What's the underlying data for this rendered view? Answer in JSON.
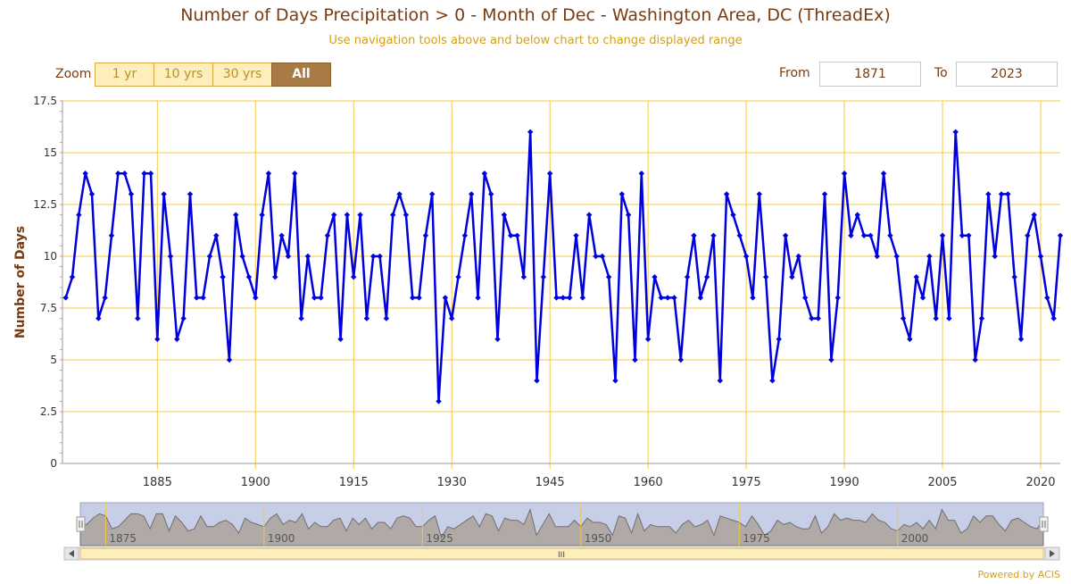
{
  "header": {
    "title": "Number of Days Precipitation > 0 - Month of Dec - Washington Area, DC (ThreadEx)",
    "subtitle": "Use navigation tools above and below chart to change displayed range"
  },
  "zoom": {
    "label": "Zoom",
    "buttons": [
      {
        "label": "1 yr",
        "active": false
      },
      {
        "label": "10 yrs",
        "active": false
      },
      {
        "label": "30 yrs",
        "active": false
      },
      {
        "label": "All",
        "active": true
      }
    ]
  },
  "range": {
    "from_label": "From",
    "from_value": "1871",
    "to_label": "To",
    "to_value": "2023"
  },
  "navigator": {
    "tick_labels": [
      "1875",
      "1900",
      "1925",
      "1950",
      "1975",
      "2000"
    ],
    "scrollbar_grip": "III"
  },
  "footer": {
    "credit": "Powered by ACIS"
  },
  "colors": {
    "line": "#0000dd",
    "grid": "#f5c842",
    "text": "#7a3b12",
    "accent": "#d4a017",
    "navigator_fill": "#b0a9a6",
    "navigator_mask": "#c7cfe8",
    "scrollbar": "#fdeebb"
  },
  "chart_data": {
    "type": "line",
    "title": "Number of Days Precipitation > 0 - Month of Dec - Washington Area, DC (ThreadEx)",
    "xlabel": "",
    "ylabel": "Number of Days",
    "x_start": 1871,
    "x_end": 2023,
    "xlim": [
      1870.5,
      2023
    ],
    "ylim": [
      0,
      17.5
    ],
    "yticks": [
      0,
      2.5,
      5,
      7.5,
      10,
      12.5,
      15,
      17.5
    ],
    "ytick_labels": [
      "0",
      "2.5",
      "5",
      "7.5",
      "10",
      "12.5",
      "15",
      "17.5"
    ],
    "xticks": [
      1885,
      1900,
      1915,
      1930,
      1945,
      1960,
      1975,
      1990,
      2005,
      2020
    ],
    "xtick_labels": [
      "1885",
      "1900",
      "1915",
      "1930",
      "1945",
      "1960",
      "1975",
      "1990",
      "2005",
      "2020"
    ],
    "grid": true,
    "series": [
      {
        "values": [
          8,
          9,
          12,
          14,
          13,
          7,
          8,
          11,
          14,
          14,
          13,
          7,
          14,
          14,
          6,
          13,
          10,
          6,
          7,
          13,
          8,
          8,
          10,
          11,
          9,
          5,
          12,
          10,
          9,
          8,
          12,
          14,
          9,
          11,
          10,
          14,
          7,
          10,
          8,
          8,
          11,
          12,
          6,
          12,
          9,
          12,
          7,
          10,
          10,
          7,
          12,
          13,
          12,
          8,
          8,
          11,
          13,
          3,
          8,
          7,
          9,
          11,
          13,
          8,
          14,
          13,
          6,
          12,
          11,
          11,
          9,
          16,
          4,
          9,
          14,
          8,
          8,
          8,
          11,
          8,
          12,
          10,
          10,
          9,
          4,
          13,
          12,
          5,
          14,
          6,
          9,
          8,
          8,
          8,
          5,
          9,
          11,
          8,
          9,
          11,
          4,
          13,
          12,
          11,
          10,
          8,
          13,
          9,
          4,
          6,
          11,
          9,
          10,
          8,
          7,
          7,
          13,
          5,
          8,
          14,
          11,
          12,
          11,
          11,
          10,
          14,
          11,
          10,
          7,
          6,
          9,
          8,
          10,
          7,
          11,
          7,
          16,
          11,
          11,
          5,
          7,
          13,
          10,
          13,
          13,
          9,
          6,
          11,
          12,
          10,
          8,
          7,
          11
        ]
      }
    ]
  }
}
